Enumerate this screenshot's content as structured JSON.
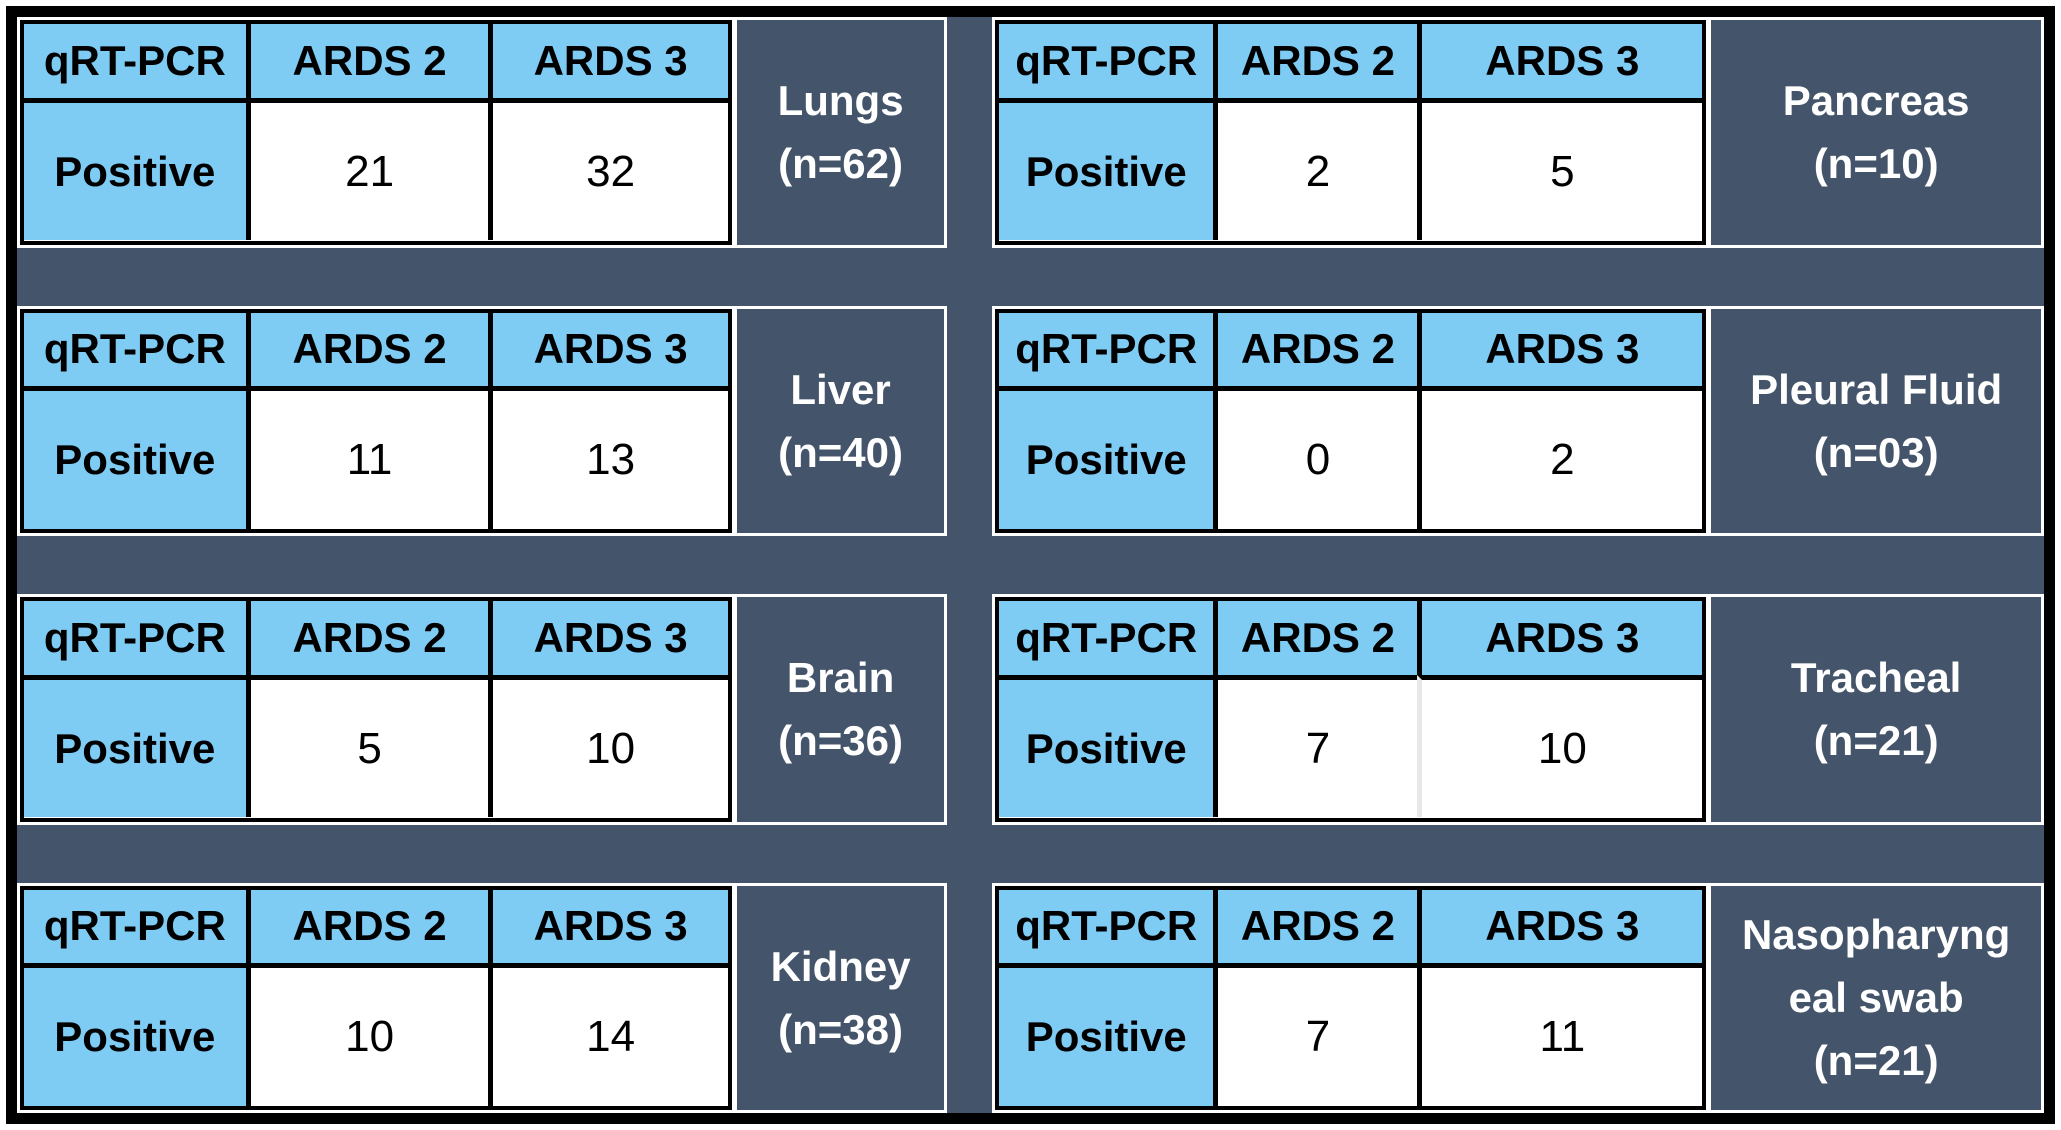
{
  "figure": {
    "headers": [
      "qRT-PCR",
      "ARDS 2",
      "ARDS 3"
    ],
    "row_label": "Positive"
  },
  "colors": {
    "header_blue": "#7ECBF4",
    "panel_dark": "#44546A",
    "cell_white": "#FFFFFF",
    "border_black": "#000000",
    "separator_white": "#FFFFFF"
  },
  "blocks": [
    {
      "organ": "Lungs",
      "n": "(n=62)",
      "label_lines": [
        "Lungs",
        "(n=62)"
      ],
      "ards2": "21",
      "ards3": "32",
      "side": "left"
    },
    {
      "organ": "Pancreas",
      "n": "(n=10)",
      "label_lines": [
        "Pancreas",
        "(n=10)"
      ],
      "ards2": "2",
      "ards3": "5",
      "side": "right"
    },
    {
      "organ": "Liver",
      "n": "(n=40)",
      "label_lines": [
        "Liver",
        "(n=40)"
      ],
      "ards2": "11",
      "ards3": "13",
      "side": "left"
    },
    {
      "organ": "Pleural Fluid",
      "n": "(n=03)",
      "label_lines": [
        "Pleural Fluid",
        "(n=03)"
      ],
      "ards2": "0",
      "ards3": "2",
      "side": "right"
    },
    {
      "organ": "Brain",
      "n": "(n=36)",
      "label_lines": [
        "Brain",
        "(n=36)"
      ],
      "ards2": "5",
      "ards3": "10",
      "side": "left"
    },
    {
      "organ": "Tracheal",
      "n": "(n=21)",
      "label_lines": [
        "Tracheal",
        "(n=21)"
      ],
      "ards2": "7",
      "ards3": "10",
      "side": "right",
      "divider": "light"
    },
    {
      "organ": "Kidney",
      "n": "(n=38)",
      "label_lines": [
        "Kidney",
        "(n=38)"
      ],
      "ards2": "10",
      "ards3": "14",
      "side": "left"
    },
    {
      "organ": "Nasopharyngeal swab",
      "n": "(n=21)",
      "label_lines": [
        "Nasopharyng",
        "eal swab",
        "(n=21)"
      ],
      "ards2": "7",
      "ards3": "11",
      "side": "right"
    }
  ],
  "chart_data": {
    "type": "table",
    "title": "qRT-PCR positive counts by specimen for ARDS 2 and ARDS 3 groups",
    "columns": [
      "qRT-PCR",
      "ARDS 2",
      "ARDS 3"
    ],
    "tables": [
      {
        "specimen": "Lungs",
        "n": 62,
        "row": "Positive",
        "ards2": 21,
        "ards3": 32
      },
      {
        "specimen": "Pancreas",
        "n": 10,
        "row": "Positive",
        "ards2": 2,
        "ards3": 5
      },
      {
        "specimen": "Liver",
        "n": 40,
        "row": "Positive",
        "ards2": 11,
        "ards3": 13
      },
      {
        "specimen": "Pleural Fluid",
        "n": 3,
        "row": "Positive",
        "ards2": 0,
        "ards3": 2
      },
      {
        "specimen": "Brain",
        "n": 36,
        "row": "Positive",
        "ards2": 5,
        "ards3": 10
      },
      {
        "specimen": "Tracheal",
        "n": 21,
        "row": "Positive",
        "ards2": 7,
        "ards3": 10
      },
      {
        "specimen": "Kidney",
        "n": 38,
        "row": "Positive",
        "ards2": 10,
        "ards3": 14
      },
      {
        "specimen": "Nasopharyngeal swab",
        "n": 21,
        "row": "Positive",
        "ards2": 7,
        "ards3": 11
      }
    ]
  }
}
